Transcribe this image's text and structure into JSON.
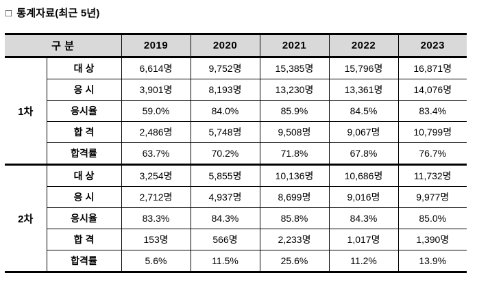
{
  "page": {
    "title_bullet": "□",
    "title": "통계자료(최근 5년)"
  },
  "colors": {
    "header_bg": "#d9d9d9",
    "border": "#000000",
    "text": "#000000",
    "background": "#ffffff"
  },
  "table": {
    "header": {
      "category": "구 분",
      "years": [
        "2019",
        "2020",
        "2021",
        "2022",
        "2023"
      ]
    },
    "sections": [
      {
        "name": "1차",
        "rows": [
          {
            "label": "대 상",
            "values": [
              "6,614명",
              "9,752명",
              "15,385명",
              "15,796명",
              "16,871명"
            ]
          },
          {
            "label": "응 시",
            "values": [
              "3,901명",
              "8,193명",
              "13,230명",
              "13,361명",
              "14,076명"
            ]
          },
          {
            "label": "응시율",
            "values": [
              "59.0%",
              "84.0%",
              "85.9%",
              "84.5%",
              "83.4%"
            ]
          },
          {
            "label": "합 격",
            "values": [
              "2,486명",
              "5,748명",
              "9,508명",
              "9,067명",
              "10,799명"
            ]
          },
          {
            "label": "합격률",
            "values": [
              "63.7%",
              "70.2%",
              "71.8%",
              "67.8%",
              "76.7%"
            ]
          }
        ]
      },
      {
        "name": "2차",
        "rows": [
          {
            "label": "대 상",
            "values": [
              "3,254명",
              "5,855명",
              "10,136명",
              "10,686명",
              "11,732명"
            ]
          },
          {
            "label": "응 시",
            "values": [
              "2,712명",
              "4,937명",
              "8,699명",
              "9,016명",
              "9,977명"
            ]
          },
          {
            "label": "응시율",
            "values": [
              "83.3%",
              "84.3%",
              "85.8%",
              "84.3%",
              "85.0%"
            ]
          },
          {
            "label": "합 격",
            "values": [
              "153명",
              "566명",
              "2,233명",
              "1,017명",
              "1,390명"
            ]
          },
          {
            "label": "합격률",
            "values": [
              "5.6%",
              "11.5%",
              "25.6%",
              "11.2%",
              "13.9%"
            ]
          }
        ]
      }
    ]
  }
}
